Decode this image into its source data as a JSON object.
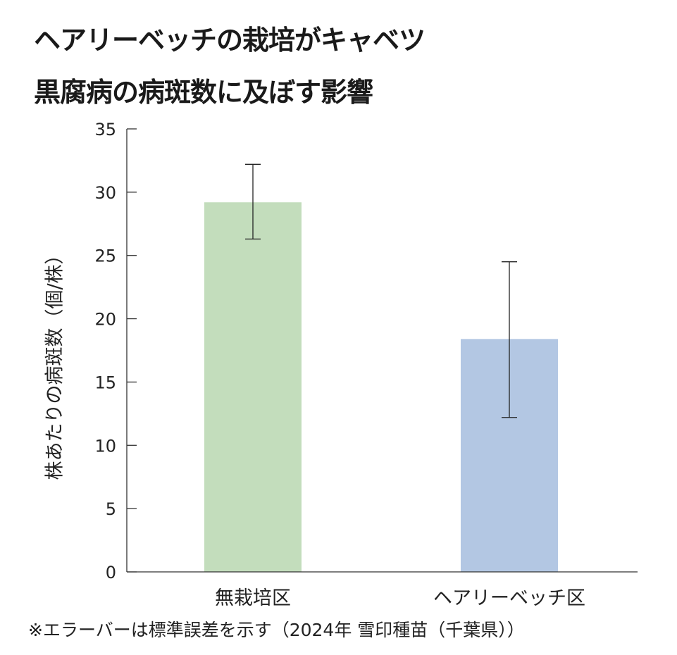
{
  "chart_data": {
    "type": "bar",
    "title": "ヘアリーベッチの栽培がキャベツ黒腐病の病斑数に及ぼす影響",
    "title_lines": [
      "ヘアリーベッチの栽培がキャベツ",
      "黒腐病の病斑数に及ぼす影響"
    ],
    "ylabel": "株あたりの病斑数（個/株）",
    "xlabel": "",
    "categories": [
      "無栽培区",
      "ヘアリーベッチ区"
    ],
    "values": [
      29.2,
      18.4
    ],
    "error_upper": [
      32.2,
      24.5
    ],
    "error_lower": [
      26.3,
      12.2
    ],
    "colors": [
      "#c3ddbc",
      "#b3c7e3"
    ],
    "ylim": [
      0,
      35
    ],
    "yticks": [
      0,
      5,
      10,
      15,
      20,
      25,
      30,
      35
    ],
    "grid": false,
    "note": "※エラーバーは標準誤差を示す（2024年  雪印種苗（千葉県））"
  }
}
